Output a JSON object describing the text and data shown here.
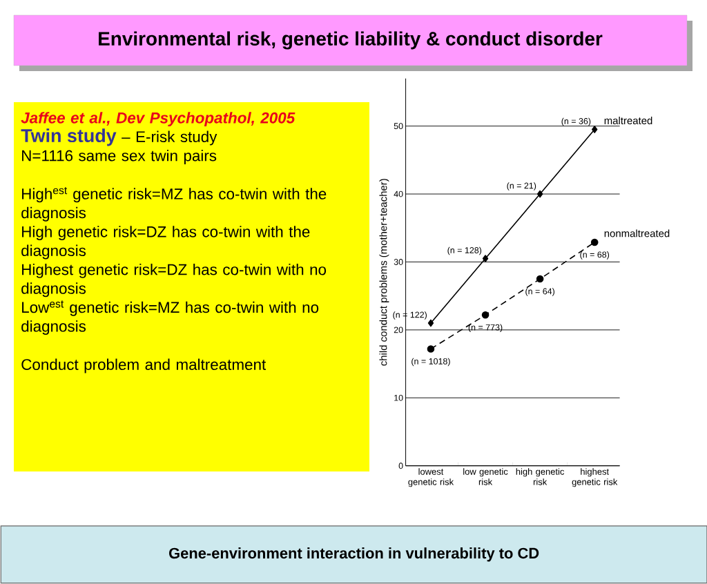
{
  "chart_data": {
    "type": "line",
    "title": "Environmental risk, genetic liability & conduct disorder",
    "ylabel": "child conduct problems (mother+teacher)",
    "categories": [
      "lowest genetic risk",
      "low genetic risk",
      "high genetic risk",
      "highest genetic risk"
    ],
    "series": [
      {
        "name": "maltreated",
        "color": "#000000",
        "marker": "diamond",
        "line_style": "solid",
        "values": [
          21.0,
          30.5,
          40.0,
          49.5
        ]
      },
      {
        "name": "nonmaltreated",
        "color": "#000000",
        "marker": "circle",
        "line_style": "dashed",
        "values": [
          17.2,
          22.2,
          27.5,
          32.9
        ]
      }
    ],
    "ylim": [
      0,
      57
    ],
    "yticks": [
      0,
      10,
      20,
      30,
      40,
      50
    ],
    "grid": "y",
    "annotations": [
      "Jaffee et al., Dev Psychopathol, 2005",
      "Twin study",
      "– E-risk study",
      "N=1116 same sex twin pairs",
      "High$^{est}$ genetic risk=MZ has co-twin with the diagnosis",
      "High genetic risk=DZ has co-twin with the diagnosis",
      "Highest genetic risk=DZ has co-twin with no diagnosis",
      "Low$^{est}$ genetic risk=MZ has co-twin with no diagnosis",
      "Conduct problem and maltreatment",
      "Gene-environment interaction in vulnerability to CD",
      {
        "text": "(n = 122)",
        "x": "lowest genetic risk",
        "y": 21.0
      },
      {
        "text": "(n = 128)",
        "x": "low genetic risk",
        "y": 30.5
      },
      {
        "text": "(n = 21)",
        "x": "high genetic risk",
        "y": 40.0
      },
      {
        "text": "(n = 36)",
        "x": "highest genetic risk",
        "y": 49.5
      },
      {
        "text": "(n = 1018)",
        "x": "lowest genetic risk",
        "y": 17.2
      },
      {
        "text": "(n = 773)",
        "x": "low genetic risk",
        "y": 22.2
      },
      {
        "text": "(n = 64)",
        "x": "high genetic risk",
        "y": 27.5
      },
      {
        "text": "(n = 68)",
        "x": "highest genetic risk",
        "y": 32.9
      }
    ]
  }
}
